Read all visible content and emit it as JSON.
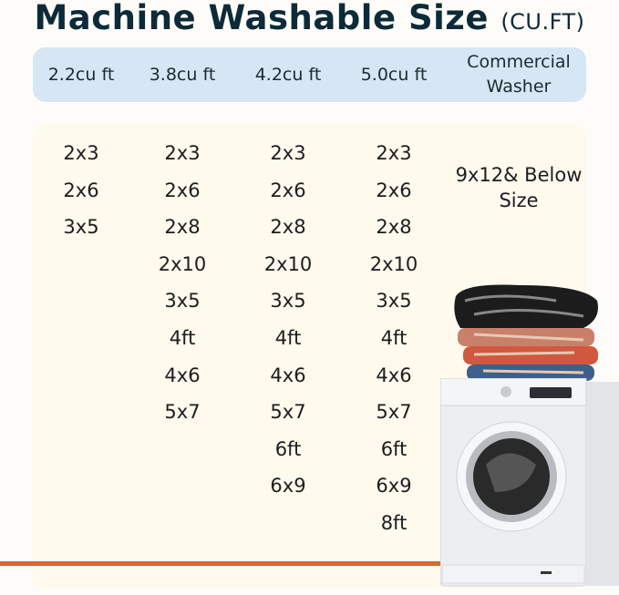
{
  "title": {
    "main": "Machine Washable Size",
    "unit": "(CU.FT)"
  },
  "header": [
    "2.2cu ft",
    "3.8cu ft",
    "4.2cu ft",
    "5.0cu ft",
    "Commercial Washer"
  ],
  "columns": [
    [
      "2x3",
      "2x6",
      "3x5"
    ],
    [
      "2x3",
      "2x6",
      "2x8",
      "2x10",
      "3x5",
      "4ft",
      "4x6",
      "5x7"
    ],
    [
      "2x3",
      "2x6",
      "2x8",
      "2x10",
      "3x5",
      "4ft",
      "4x6",
      "5x7",
      "6ft",
      "6x9"
    ],
    [
      "2x3",
      "2x6",
      "2x8",
      "2x10",
      "3x5",
      "4ft",
      "4x6",
      "5x7",
      "6ft",
      "6x9",
      "8ft"
    ]
  ],
  "commercial": "9x12& Below Size",
  "colors": {
    "title": "#0d2a38",
    "header_bg": "#d6e6f4",
    "panel_bg": "#fff9ee",
    "accent_line": "#d66a32"
  }
}
